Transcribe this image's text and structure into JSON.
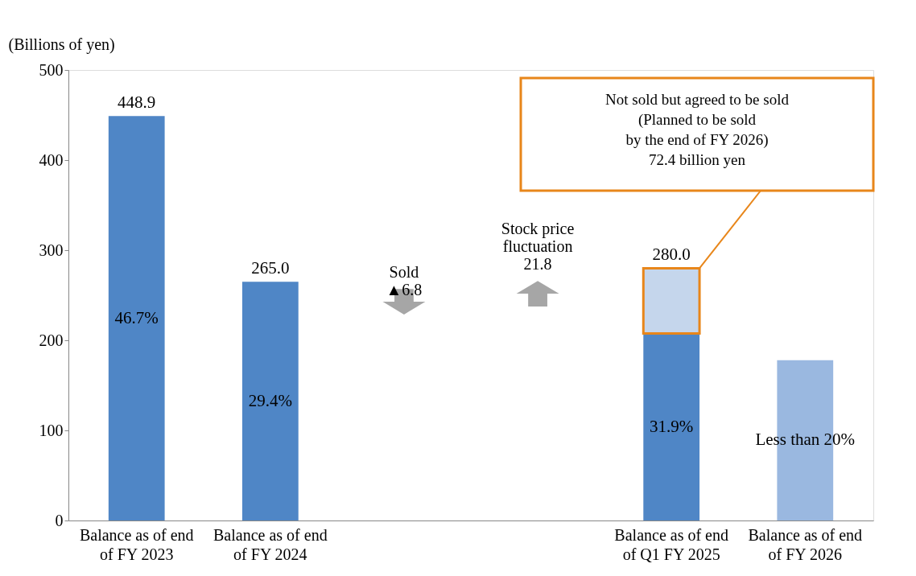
{
  "chart_data": {
    "type": "bar",
    "stacked": true,
    "ylabel": "(Billions of yen)",
    "categories": [
      "Balance as of end\nof  FY 2023",
      "Balance as of end\nof FY 2024",
      null,
      null,
      "Balance as of end\nof Q1 FY 2025",
      "Balance as of end\nof FY 2026"
    ],
    "series": [
      {
        "color": "#4f86c6",
        "colors": [
          null,
          null,
          null,
          null,
          null,
          "#9ab8e0"
        ],
        "values": [
          448.9,
          265.0,
          null,
          null,
          207.6,
          178
        ]
      },
      {
        "color": "#c5d6ec",
        "values": [
          null,
          null,
          null,
          null,
          72.4,
          null
        ]
      }
    ],
    "totals": [
      "448.9",
      "265.0",
      null,
      null,
      "280.0",
      null
    ],
    "ylim": [
      0,
      500
    ],
    "yticks": [
      0,
      100,
      200,
      300,
      400,
      500
    ],
    "grid": false,
    "annotations": [
      "46.7%",
      "29.4%",
      "31.9%",
      "Less than 20%",
      "Sold\n▲6.8",
      "Stock price\nfluctuation\n21.8",
      "Not sold but agreed to be sold\n(Planned to be sold\nby the end of FY 2026)\n72.4 billion yen"
    ]
  }
}
